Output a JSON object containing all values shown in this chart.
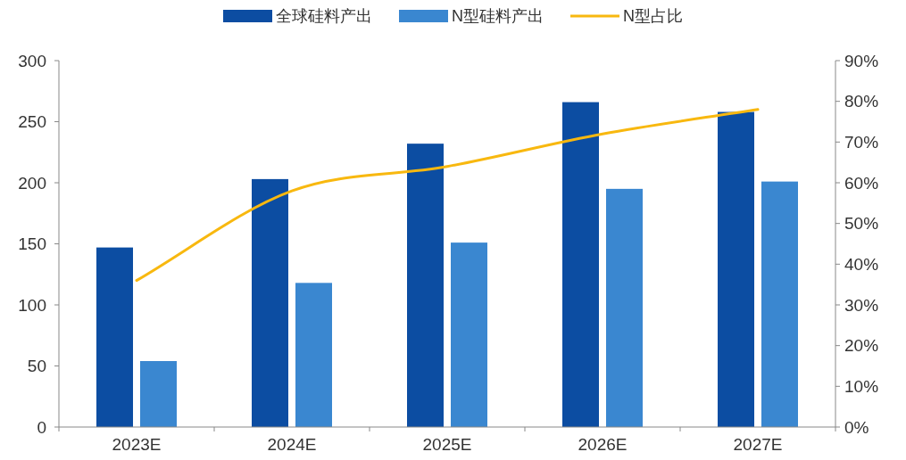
{
  "chart_data": {
    "type": "bar",
    "categories": [
      "2023E",
      "2024E",
      "2025E",
      "2026E",
      "2027E"
    ],
    "series": [
      {
        "name": "全球硅料产出",
        "color": "#0c4da2",
        "values": [
          147,
          203,
          232,
          266,
          258
        ]
      },
      {
        "name": "N型硅料产出",
        "color": "#3a87d0",
        "values": [
          54,
          118,
          151,
          195,
          201
        ]
      },
      {
        "name": "N型占比",
        "type": "line",
        "axis": "y2",
        "color": "#f8b80f",
        "values": [
          36,
          58,
          64,
          72,
          78
        ]
      }
    ],
    "ylim": [
      0,
      300
    ],
    "yticks": [
      0,
      50,
      100,
      150,
      200,
      250,
      300
    ],
    "y2lim": [
      0,
      90
    ],
    "y2ticks": [
      {
        "value": 0,
        "label": "0%"
      },
      {
        "value": 10,
        "label": "10%"
      },
      {
        "value": 20,
        "label": "20%"
      },
      {
        "value": 30,
        "label": "30%"
      },
      {
        "value": 40,
        "label": "40%"
      },
      {
        "value": 50,
        "label": "50%"
      },
      {
        "value": 60,
        "label": "60%"
      },
      {
        "value": 70,
        "label": "70%"
      },
      {
        "value": 80,
        "label": "80%"
      },
      {
        "value": 90,
        "label": "90%"
      }
    ],
    "grid": false,
    "legend": "top"
  }
}
